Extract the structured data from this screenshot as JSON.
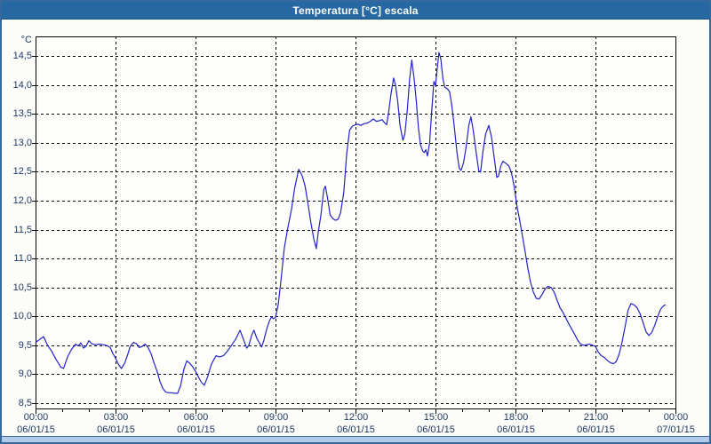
{
  "window": {
    "title": "Temperatura [°C] escala"
  },
  "colors": {
    "titlebar_bg": "#2669a2",
    "titlebar_text": "#ffffff",
    "window_border": "#35699d",
    "window_bg": "#fcfdf8",
    "plot_bg": "#fefefb",
    "plot_border": "#000000",
    "grid": "#000000",
    "line": "#2323c8",
    "axis_text": "#1f3864",
    "bottom_strip": "#b3cae8"
  },
  "chart_data": {
    "type": "line",
    "title": "Temperatura [°C] escala",
    "xlabel": "",
    "ylabel": "°C",
    "ylim": [
      8.5,
      14.5
    ],
    "xlim_hours": [
      0,
      24
    ],
    "grid": "dashed",
    "legend": "none",
    "y_ticks": [
      {
        "value": 14.5,
        "label": "14,5"
      },
      {
        "value": 14.0,
        "label": "14,0"
      },
      {
        "value": 13.5,
        "label": "13,5"
      },
      {
        "value": 13.0,
        "label": "13,0"
      },
      {
        "value": 12.5,
        "label": "12,5"
      },
      {
        "value": 12.0,
        "label": "12,0"
      },
      {
        "value": 11.5,
        "label": "11,5"
      },
      {
        "value": 11.0,
        "label": "11,0"
      },
      {
        "value": 10.5,
        "label": "10,5"
      },
      {
        "value": 10.0,
        "label": "10,0"
      },
      {
        "value": 9.5,
        "label": "9,5"
      },
      {
        "value": 9.0,
        "label": "9,0"
      },
      {
        "value": 8.5,
        "label": "8,5"
      }
    ],
    "x_ticks": [
      {
        "hour": 0,
        "time": "00:00",
        "date": "06/01/15"
      },
      {
        "hour": 3,
        "time": "03:00",
        "date": "06/01/15"
      },
      {
        "hour": 6,
        "time": "06:00",
        "date": "06/01/15"
      },
      {
        "hour": 9,
        "time": "09:00",
        "date": "06/01/15"
      },
      {
        "hour": 12,
        "time": "12:00",
        "date": "06/01/15"
      },
      {
        "hour": 15,
        "time": "15:00",
        "date": "06/01/15"
      },
      {
        "hour": 18,
        "time": "18:00",
        "date": "06/01/15"
      },
      {
        "hour": 21,
        "time": "21:00",
        "date": "06/01/15"
      },
      {
        "hour": 24,
        "time": "00:00",
        "date": "07/01/15"
      }
    ],
    "minor_x_tick_every_hours": 1,
    "series": [
      {
        "name": "Temperatura",
        "color": "#2323c8",
        "points_hour_temp": [
          [
            0,
            9.55
          ],
          [
            0.15,
            9.6
          ],
          [
            0.3,
            9.65
          ],
          [
            0.45,
            9.5
          ],
          [
            0.6,
            9.4
          ],
          [
            0.75,
            9.27
          ],
          [
            0.95,
            9.12
          ],
          [
            1.05,
            9.1
          ],
          [
            1.2,
            9.3
          ],
          [
            1.35,
            9.43
          ],
          [
            1.5,
            9.52
          ],
          [
            1.6,
            9.49
          ],
          [
            1.7,
            9.54
          ],
          [
            1.8,
            9.45
          ],
          [
            1.9,
            9.49
          ],
          [
            2,
            9.58
          ],
          [
            2.1,
            9.53
          ],
          [
            2.25,
            9.51
          ],
          [
            2.4,
            9.52
          ],
          [
            2.55,
            9.51
          ],
          [
            2.7,
            9.49
          ],
          [
            2.8,
            9.46
          ],
          [
            2.9,
            9.36
          ],
          [
            3,
            9.28
          ],
          [
            3.1,
            9.18
          ],
          [
            3.22,
            9.1
          ],
          [
            3.35,
            9.2
          ],
          [
            3.45,
            9.33
          ],
          [
            3.55,
            9.48
          ],
          [
            3.67,
            9.55
          ],
          [
            3.78,
            9.53
          ],
          [
            3.89,
            9.46
          ],
          [
            4,
            9.48
          ],
          [
            4.11,
            9.52
          ],
          [
            4.22,
            9.46
          ],
          [
            4.33,
            9.36
          ],
          [
            4.44,
            9.2
          ],
          [
            4.56,
            9.05
          ],
          [
            4.67,
            8.87
          ],
          [
            4.78,
            8.75
          ],
          [
            4.89,
            8.69
          ],
          [
            5,
            8.68
          ],
          [
            5.11,
            8.68
          ],
          [
            5.22,
            8.67
          ],
          [
            5.33,
            8.67
          ],
          [
            5.44,
            8.8
          ],
          [
            5.56,
            9.08
          ],
          [
            5.67,
            9.23
          ],
          [
            5.78,
            9.19
          ],
          [
            5.89,
            9.13
          ],
          [
            6,
            9.05
          ],
          [
            6.11,
            8.95
          ],
          [
            6.22,
            8.86
          ],
          [
            6.33,
            8.81
          ],
          [
            6.45,
            8.95
          ],
          [
            6.6,
            9.18
          ],
          [
            6.77,
            9.32
          ],
          [
            6.9,
            9.3
          ],
          [
            7.05,
            9.32
          ],
          [
            7.2,
            9.4
          ],
          [
            7.35,
            9.5
          ],
          [
            7.5,
            9.6
          ],
          [
            7.67,
            9.76
          ],
          [
            7.8,
            9.6
          ],
          [
            7.92,
            9.45
          ],
          [
            8,
            9.5
          ],
          [
            8.11,
            9.68
          ],
          [
            8.19,
            9.76
          ],
          [
            8.3,
            9.62
          ],
          [
            8.48,
            9.47
          ],
          [
            8.56,
            9.58
          ],
          [
            8.67,
            9.78
          ],
          [
            8.78,
            9.93
          ],
          [
            8.85,
            9.99
          ],
          [
            8.92,
            9.96
          ],
          [
            9,
            9.98
          ],
          [
            9.1,
            10.2
          ],
          [
            9.2,
            10.6
          ],
          [
            9.33,
            11.18
          ],
          [
            9.45,
            11.5
          ],
          [
            9.6,
            11.85
          ],
          [
            9.72,
            12.22
          ],
          [
            9.87,
            12.54
          ],
          [
            10,
            12.43
          ],
          [
            10.11,
            12.25
          ],
          [
            10.22,
            11.94
          ],
          [
            10.33,
            11.61
          ],
          [
            10.44,
            11.33
          ],
          [
            10.53,
            11.17
          ],
          [
            10.61,
            11.48
          ],
          [
            10.7,
            11.74
          ],
          [
            10.81,
            12.19
          ],
          [
            10.87,
            12.25
          ],
          [
            10.95,
            12.05
          ],
          [
            11.05,
            11.75
          ],
          [
            11.15,
            11.69
          ],
          [
            11.25,
            11.66
          ],
          [
            11.35,
            11.68
          ],
          [
            11.44,
            11.79
          ],
          [
            11.56,
            12.14
          ],
          [
            11.67,
            12.81
          ],
          [
            11.78,
            13.22
          ],
          [
            11.89,
            13.29
          ],
          [
            12,
            13.31
          ],
          [
            12.1,
            13.32
          ],
          [
            12.2,
            13.3
          ],
          [
            12.33,
            13.33
          ],
          [
            12.44,
            13.34
          ],
          [
            12.56,
            13.37
          ],
          [
            12.67,
            13.41
          ],
          [
            12.78,
            13.37
          ],
          [
            12.89,
            13.38
          ],
          [
            13,
            13.4
          ],
          [
            13.08,
            13.35
          ],
          [
            13.17,
            13.31
          ],
          [
            13.25,
            13.55
          ],
          [
            13.33,
            13.84
          ],
          [
            13.43,
            14.12
          ],
          [
            13.5,
            14
          ],
          [
            13.58,
            13.73
          ],
          [
            13.67,
            13.3
          ],
          [
            13.78,
            13.04
          ],
          [
            13.85,
            13.15
          ],
          [
            13.94,
            13.55
          ],
          [
            14.03,
            14.1
          ],
          [
            14.11,
            14.43
          ],
          [
            14.2,
            14.1
          ],
          [
            14.28,
            13.72
          ],
          [
            14.36,
            13.26
          ],
          [
            14.44,
            12.96
          ],
          [
            14.52,
            12.86
          ],
          [
            14.58,
            12.83
          ],
          [
            14.64,
            12.88
          ],
          [
            14.7,
            12.77
          ],
          [
            14.78,
            13
          ],
          [
            14.86,
            13.55
          ],
          [
            14.94,
            14.06
          ],
          [
            15,
            13.99
          ],
          [
            15.07,
            14.3
          ],
          [
            15.13,
            14.56
          ],
          [
            15.2,
            14.45
          ],
          [
            15.28,
            14.1
          ],
          [
            15.35,
            13.96
          ],
          [
            15.45,
            13.93
          ],
          [
            15.53,
            13.88
          ],
          [
            15.61,
            13.65
          ],
          [
            15.7,
            13.3
          ],
          [
            15.8,
            12.85
          ],
          [
            15.89,
            12.56
          ],
          [
            15.96,
            12.52
          ],
          [
            16.05,
            12.65
          ],
          [
            16.15,
            12.93
          ],
          [
            16.25,
            13.3
          ],
          [
            16.33,
            13.45
          ],
          [
            16.42,
            13.2
          ],
          [
            16.53,
            12.82
          ],
          [
            16.62,
            12.52
          ],
          [
            16.69,
            12.49
          ],
          [
            16.78,
            12.85
          ],
          [
            16.88,
            13.15
          ],
          [
            17,
            13.3
          ],
          [
            17.1,
            13.1
          ],
          [
            17.2,
            12.75
          ],
          [
            17.3,
            12.4
          ],
          [
            17.36,
            12.42
          ],
          [
            17.45,
            12.6
          ],
          [
            17.53,
            12.68
          ],
          [
            17.65,
            12.64
          ],
          [
            17.75,
            12.6
          ],
          [
            17.85,
            12.48
          ],
          [
            17.95,
            12.25
          ],
          [
            18.05,
            11.92
          ],
          [
            18.15,
            11.68
          ],
          [
            18.25,
            11.42
          ],
          [
            18.35,
            11.15
          ],
          [
            18.45,
            10.87
          ],
          [
            18.56,
            10.6
          ],
          [
            18.67,
            10.42
          ],
          [
            18.78,
            10.31
          ],
          [
            18.89,
            10.3
          ],
          [
            19,
            10.38
          ],
          [
            19.11,
            10.47
          ],
          [
            19.22,
            10.52
          ],
          [
            19.33,
            10.5
          ],
          [
            19.45,
            10.42
          ],
          [
            19.56,
            10.28
          ],
          [
            19.67,
            10.15
          ],
          [
            19.78,
            10.07
          ],
          [
            19.89,
            9.97
          ],
          [
            20,
            9.87
          ],
          [
            20.11,
            9.78
          ],
          [
            20.22,
            9.69
          ],
          [
            20.33,
            9.59
          ],
          [
            20.44,
            9.52
          ],
          [
            20.56,
            9.5
          ],
          [
            20.67,
            9.51
          ],
          [
            20.78,
            9.52
          ],
          [
            20.89,
            9.5
          ],
          [
            21,
            9.48
          ],
          [
            21.11,
            9.38
          ],
          [
            21.22,
            9.32
          ],
          [
            21.33,
            9.29
          ],
          [
            21.44,
            9.24
          ],
          [
            21.56,
            9.2
          ],
          [
            21.67,
            9.18
          ],
          [
            21.78,
            9.22
          ],
          [
            21.89,
            9.35
          ],
          [
            22,
            9.56
          ],
          [
            22.11,
            9.82
          ],
          [
            22.22,
            10.1
          ],
          [
            22.33,
            10.22
          ],
          [
            22.44,
            10.2
          ],
          [
            22.56,
            10.15
          ],
          [
            22.67,
            10.05
          ],
          [
            22.78,
            9.9
          ],
          [
            22.89,
            9.74
          ],
          [
            23,
            9.67
          ],
          [
            23.11,
            9.72
          ],
          [
            23.22,
            9.84
          ],
          [
            23.33,
            9.99
          ],
          [
            23.44,
            10.12
          ],
          [
            23.55,
            10.18
          ],
          [
            23.63,
            10.2
          ]
        ]
      }
    ]
  }
}
